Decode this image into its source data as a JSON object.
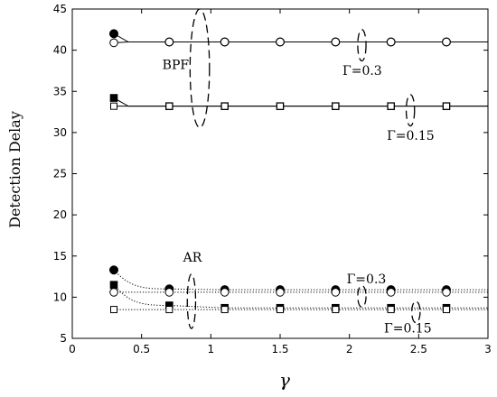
{
  "chart_data": {
    "type": "line",
    "xlabel": "γ",
    "ylabel": "Detection Delay",
    "xlim": [
      0,
      3
    ],
    "ylim": [
      5,
      45
    ],
    "xticks": [
      "0",
      "0.5",
      "1",
      "1.5",
      "2",
      "2.5",
      "3"
    ],
    "yticks": [
      "5",
      "10",
      "15",
      "20",
      "25",
      "30",
      "35",
      "40",
      "45"
    ],
    "grid": false,
    "legend": "none",
    "x": [
      0.3,
      0.7,
      1.1,
      1.5,
      1.9,
      2.3,
      2.7
    ],
    "series": [
      {
        "marker": "filled-circle",
        "line": "solid",
        "values": [
          42.0,
          41.0,
          41.0,
          41.0,
          41.0,
          41.0,
          41.0
        ]
      },
      {
        "marker": "open-circle",
        "line": "solid",
        "values": [
          40.9,
          41.0,
          41.0,
          41.0,
          41.0,
          41.0,
          41.0
        ]
      },
      {
        "marker": "filled-square",
        "line": "solid",
        "values": [
          34.2,
          33.2,
          33.2,
          33.2,
          33.2,
          33.2,
          33.2
        ]
      },
      {
        "marker": "open-square",
        "line": "solid",
        "values": [
          33.2,
          33.2,
          33.2,
          33.2,
          33.2,
          33.2,
          33.2
        ]
      },
      {
        "marker": "filled-circle",
        "line": "dotted",
        "values": [
          13.3,
          11.0,
          10.9,
          10.9,
          10.9,
          10.9,
          10.9
        ]
      },
      {
        "marker": "open-circle",
        "line": "dotted",
        "values": [
          10.6,
          10.6,
          10.6,
          10.6,
          10.6,
          10.6,
          10.6
        ]
      },
      {
        "marker": "filled-square",
        "line": "dotted",
        "values": [
          11.5,
          9.0,
          8.7,
          8.7,
          8.7,
          8.7,
          8.7
        ]
      },
      {
        "marker": "open-square",
        "line": "dotted",
        "values": [
          8.5,
          8.5,
          8.5,
          8.5,
          8.5,
          8.5,
          8.5
        ]
      }
    ],
    "annotations": [
      {
        "text": "BPF",
        "x": 0.65,
        "y": 37.7
      },
      {
        "text": "Γ=0.3",
        "x": 1.95,
        "y": 37.0
      },
      {
        "text": "Γ=0.15",
        "x": 2.27,
        "y": 29.1
      },
      {
        "text": "AR",
        "x": 0.8,
        "y": 14.3
      },
      {
        "text": "Γ=0.3",
        "x": 1.98,
        "y": 11.7
      },
      {
        "text": "Γ=0.15",
        "x": 2.25,
        "y": 5.7
      }
    ],
    "ellipses": [
      {
        "cx": 0.92,
        "cy": 37.8,
        "rx": 0.07,
        "ry": 7.2
      },
      {
        "cx": 2.09,
        "cy": 40.6,
        "rx": 0.03,
        "ry": 1.9
      },
      {
        "cx": 2.44,
        "cy": 32.7,
        "rx": 0.03,
        "ry": 1.9
      },
      {
        "cx": 0.86,
        "cy": 9.5,
        "rx": 0.03,
        "ry": 3.3
      },
      {
        "cx": 2.09,
        "cy": 10.1,
        "rx": 0.03,
        "ry": 1.3
      },
      {
        "cx": 2.48,
        "cy": 8.2,
        "rx": 0.03,
        "ry": 1.3
      }
    ]
  }
}
